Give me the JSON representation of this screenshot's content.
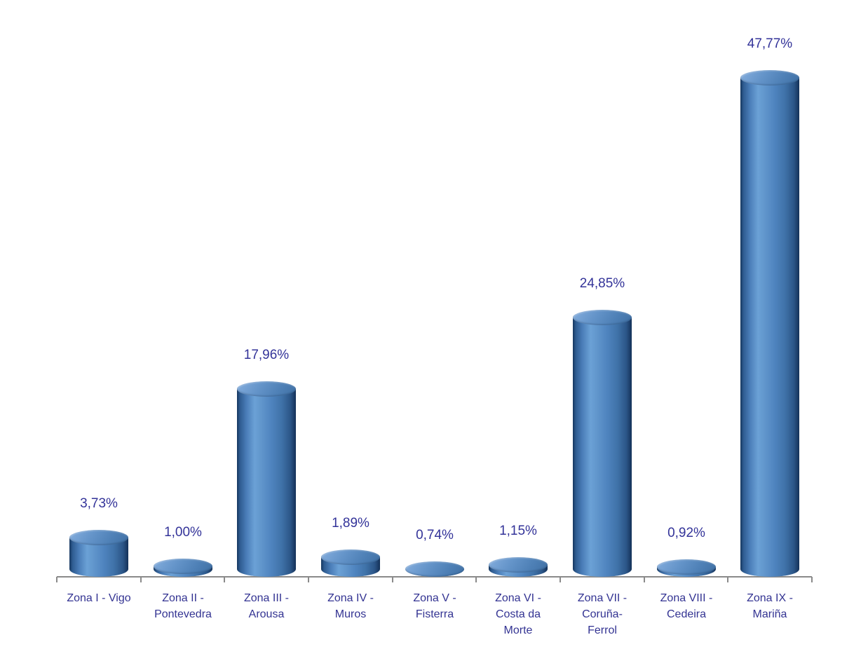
{
  "chart_data": {
    "type": "bar",
    "subtype": "cylinder-3d",
    "title": "",
    "xlabel": "",
    "ylabel": "",
    "grid": false,
    "legend": false,
    "ylim": [
      0,
      50
    ],
    "categories": [
      "Zona I - Vigo",
      "Zona II - Pontevedra",
      "Zona III - Arousa",
      "Zona IV - Muros",
      "Zona V - Fisterra",
      "Zona VI - Costa da Morte",
      "Zona VII - Coruña-Ferrol",
      "Zona VIII - Cedeira",
      "Zona IX - Mariña"
    ],
    "category_lines": [
      [
        "Zona I - Vigo"
      ],
      [
        "Zona II -",
        "Pontevedra"
      ],
      [
        "Zona III -",
        "Arousa"
      ],
      [
        "Zona IV -",
        "Muros"
      ],
      [
        "Zona V -",
        "Fisterra"
      ],
      [
        "Zona VI -",
        "Costa da",
        "Morte"
      ],
      [
        "Zona VII -",
        "Coruña-",
        "Ferrol"
      ],
      [
        "Zona VIII -",
        "Cedeira"
      ],
      [
        "Zona IX -",
        "Mariña"
      ]
    ],
    "values": [
      3.73,
      1.0,
      17.96,
      1.89,
      0.74,
      1.15,
      24.85,
      0.92,
      47.77
    ],
    "value_labels": [
      "3,73%",
      "1,00%",
      "17,96%",
      "1,89%",
      "0,74%",
      "1,15%",
      "24,85%",
      "0,92%",
      "47,77%"
    ],
    "colors": {
      "bar_main": "#4f81bd",
      "bar_highlight": "#6ba1d6",
      "bar_edge_dark": "#16375f",
      "value_label_text": "#333399",
      "axis_label_text": "#333392",
      "axis_line": "#8a8a8a",
      "background": "#ffffff"
    }
  }
}
